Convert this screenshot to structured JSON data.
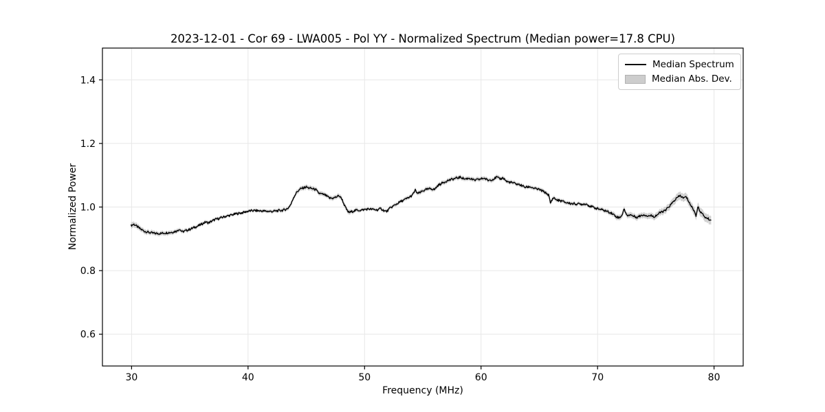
{
  "chart_data": {
    "type": "line",
    "title": "2023-12-01 - Cor 69 - LWA005 - Pol YY - Normalized Spectrum (Median power=17.8 CPU)",
    "xlabel": "Frequency (MHz)",
    "ylabel": "Normalized Power",
    "xlim": [
      27.5,
      82.5
    ],
    "ylim": [
      0.5,
      1.5
    ],
    "xticks": [
      30,
      40,
      50,
      60,
      70,
      80
    ],
    "yticks": [
      0.6,
      0.8,
      1.0,
      1.2,
      1.4
    ],
    "grid": true,
    "legend": {
      "position": "upper right",
      "entries": [
        {
          "label": "Median Spectrum",
          "type": "line",
          "color": "#000000"
        },
        {
          "label": "Median Abs. Dev.",
          "type": "patch",
          "color": "#cdcdcd"
        }
      ]
    },
    "x_range_data": [
      29.95,
      79.75
    ],
    "sample_step_mhz": 0.05,
    "noise_amplitude": 0.0036,
    "series": [
      {
        "name": "Median Spectrum",
        "style": "line",
        "color": "#000000",
        "points": [
          [
            29.95,
            0.942
          ],
          [
            30.2,
            0.946
          ],
          [
            30.5,
            0.938
          ],
          [
            30.8,
            0.93
          ],
          [
            31.1,
            0.924
          ],
          [
            31.5,
            0.92
          ],
          [
            32.0,
            0.917
          ],
          [
            32.5,
            0.917
          ],
          [
            33.0,
            0.919
          ],
          [
            33.5,
            0.921
          ],
          [
            33.9,
            0.925
          ],
          [
            34.1,
            0.931
          ],
          [
            34.35,
            0.922
          ],
          [
            34.6,
            0.925
          ],
          [
            35.0,
            0.93
          ],
          [
            35.4,
            0.936
          ],
          [
            35.8,
            0.942
          ],
          [
            36.1,
            0.948
          ],
          [
            36.35,
            0.953
          ],
          [
            36.6,
            0.95
          ],
          [
            36.9,
            0.956
          ],
          [
            37.2,
            0.961
          ],
          [
            37.5,
            0.964
          ],
          [
            38.0,
            0.97
          ],
          [
            38.6,
            0.975
          ],
          [
            39.0,
            0.979
          ],
          [
            39.5,
            0.982
          ],
          [
            40.0,
            0.987
          ],
          [
            40.5,
            0.989
          ],
          [
            41.0,
            0.988
          ],
          [
            41.5,
            0.987
          ],
          [
            42.0,
            0.986
          ],
          [
            42.5,
            0.988
          ],
          [
            43.0,
            0.99
          ],
          [
            43.4,
            0.995
          ],
          [
            43.7,
            1.01
          ],
          [
            43.9,
            1.03
          ],
          [
            44.2,
            1.048
          ],
          [
            44.5,
            1.057
          ],
          [
            44.8,
            1.061
          ],
          [
            45.0,
            1.063
          ],
          [
            45.2,
            1.06
          ],
          [
            45.5,
            1.058
          ],
          [
            45.8,
            1.055
          ],
          [
            46.05,
            1.044
          ],
          [
            46.3,
            1.041
          ],
          [
            46.6,
            1.038
          ],
          [
            47.0,
            1.028
          ],
          [
            47.3,
            1.028
          ],
          [
            47.6,
            1.032
          ],
          [
            47.8,
            1.036
          ],
          [
            48.05,
            1.026
          ],
          [
            48.3,
            1.003
          ],
          [
            48.55,
            0.986
          ],
          [
            48.7,
            0.983
          ],
          [
            49.0,
            0.987
          ],
          [
            49.3,
            0.99
          ],
          [
            49.7,
            0.99
          ],
          [
            50.1,
            0.993
          ],
          [
            50.4,
            0.994
          ],
          [
            50.8,
            0.992
          ],
          [
            51.1,
            0.991
          ],
          [
            51.4,
            0.995
          ],
          [
            51.7,
            0.988
          ],
          [
            51.9,
            0.986
          ],
          [
            52.2,
            0.997
          ],
          [
            52.6,
            1.006
          ],
          [
            52.9,
            1.013
          ],
          [
            53.2,
            1.019
          ],
          [
            53.5,
            1.024
          ],
          [
            53.8,
            1.03
          ],
          [
            54.1,
            1.037
          ],
          [
            54.35,
            1.053
          ],
          [
            54.55,
            1.042
          ],
          [
            54.8,
            1.046
          ],
          [
            55.0,
            1.051
          ],
          [
            55.3,
            1.055
          ],
          [
            55.7,
            1.058
          ],
          [
            56.0,
            1.055
          ],
          [
            56.3,
            1.068
          ],
          [
            56.7,
            1.076
          ],
          [
            57.1,
            1.083
          ],
          [
            57.5,
            1.087
          ],
          [
            57.9,
            1.091
          ],
          [
            58.25,
            1.094
          ],
          [
            58.6,
            1.088
          ],
          [
            59.0,
            1.091
          ],
          [
            59.4,
            1.084
          ],
          [
            59.85,
            1.087
          ],
          [
            60.25,
            1.091
          ],
          [
            60.6,
            1.084
          ],
          [
            61.0,
            1.087
          ],
          [
            61.35,
            1.094
          ],
          [
            61.6,
            1.088
          ],
          [
            61.9,
            1.092
          ],
          [
            62.2,
            1.08
          ],
          [
            62.6,
            1.077
          ],
          [
            63.0,
            1.073
          ],
          [
            63.4,
            1.069
          ],
          [
            63.8,
            1.062
          ],
          [
            64.2,
            1.064
          ],
          [
            64.6,
            1.058
          ],
          [
            65.0,
            1.055
          ],
          [
            65.4,
            1.048
          ],
          [
            65.8,
            1.038
          ],
          [
            65.95,
            1.012
          ],
          [
            66.2,
            1.03
          ],
          [
            66.5,
            1.022
          ],
          [
            66.9,
            1.019
          ],
          [
            67.3,
            1.014
          ],
          [
            67.7,
            1.011
          ],
          [
            68.1,
            1.01
          ],
          [
            68.6,
            1.009
          ],
          [
            69.0,
            1.01
          ],
          [
            69.4,
            1.002
          ],
          [
            69.8,
            0.997
          ],
          [
            70.2,
            0.993
          ],
          [
            70.7,
            0.988
          ],
          [
            71.2,
            0.981
          ],
          [
            71.6,
            0.97
          ],
          [
            71.85,
            0.966
          ],
          [
            72.1,
            0.975
          ],
          [
            72.3,
            0.994
          ],
          [
            72.5,
            0.973
          ],
          [
            72.8,
            0.976
          ],
          [
            73.1,
            0.971
          ],
          [
            73.4,
            0.968
          ],
          [
            73.7,
            0.973
          ],
          [
            74.0,
            0.976
          ],
          [
            74.3,
            0.972
          ],
          [
            74.6,
            0.973
          ],
          [
            74.9,
            0.97
          ],
          [
            75.2,
            0.978
          ],
          [
            75.5,
            0.985
          ],
          [
            75.8,
            0.988
          ],
          [
            76.1,
            1.0
          ],
          [
            76.4,
            1.012
          ],
          [
            76.7,
            1.025
          ],
          [
            76.9,
            1.031
          ],
          [
            77.1,
            1.036
          ],
          [
            77.35,
            1.028
          ],
          [
            77.6,
            1.032
          ],
          [
            77.8,
            1.02
          ],
          [
            78.0,
            1.005
          ],
          [
            78.25,
            0.991
          ],
          [
            78.45,
            0.973
          ],
          [
            78.6,
            1.0
          ],
          [
            78.8,
            0.988
          ],
          [
            79.0,
            0.977
          ],
          [
            79.3,
            0.966
          ],
          [
            79.5,
            0.963
          ],
          [
            79.75,
            0.958
          ]
        ]
      },
      {
        "name": "Median Abs. Dev.",
        "style": "band_halfwidth",
        "color": "#9b9b9b",
        "points": [
          [
            29.95,
            0.009
          ],
          [
            31,
            0.007
          ],
          [
            33,
            0.006
          ],
          [
            36,
            0.005
          ],
          [
            40,
            0.004
          ],
          [
            44,
            0.006
          ],
          [
            45,
            0.007
          ],
          [
            47,
            0.006
          ],
          [
            48.6,
            0.007
          ],
          [
            50,
            0.004
          ],
          [
            53,
            0.005
          ],
          [
            55,
            0.006
          ],
          [
            58,
            0.006
          ],
          [
            61,
            0.006
          ],
          [
            64,
            0.005
          ],
          [
            66,
            0.006
          ],
          [
            68,
            0.005
          ],
          [
            70,
            0.005
          ],
          [
            72,
            0.008
          ],
          [
            74,
            0.008
          ],
          [
            76,
            0.01
          ],
          [
            77,
            0.012
          ],
          [
            78,
            0.012
          ],
          [
            79,
            0.013
          ],
          [
            79.75,
            0.013
          ]
        ]
      }
    ]
  },
  "colors": {
    "background": "#ffffff",
    "grid": "#e7e7e7",
    "spine": "#000000",
    "line": "#000000",
    "band_fill": "#9b9b9b",
    "legend_border": "#cccccc"
  }
}
